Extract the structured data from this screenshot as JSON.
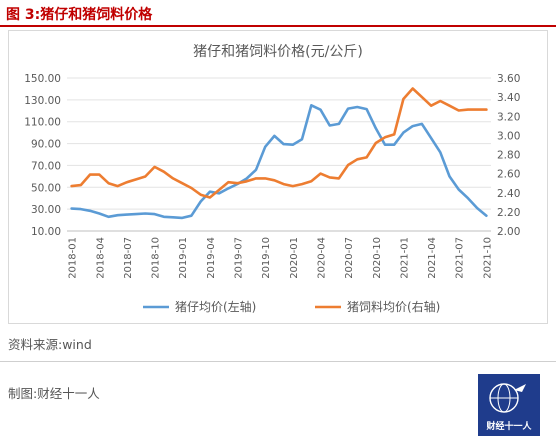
{
  "figure": {
    "title": "图 3:猪仔和猪饲料价格",
    "source": "资料来源:wind",
    "credit": "制图:财经十一人",
    "logo_text": "财经十一人"
  },
  "chart_data": {
    "type": "line",
    "title": "猪仔和猪饲料价格(元/公斤)",
    "x_tick_labels": [
      "2018-01",
      "2018-04",
      "2018-07",
      "2018-10",
      "2019-01",
      "2019-04",
      "2019-07",
      "2019-10",
      "2020-01",
      "2020-04",
      "2020-07",
      "2020-10",
      "2021-01",
      "2021-04",
      "2021-07",
      "2021-10"
    ],
    "x_tick_every": 3,
    "x": [
      "2018-01",
      "2018-02",
      "2018-03",
      "2018-04",
      "2018-05",
      "2018-06",
      "2018-07",
      "2018-08",
      "2018-09",
      "2018-10",
      "2018-11",
      "2018-12",
      "2019-01",
      "2019-02",
      "2019-03",
      "2019-04",
      "2019-05",
      "2019-06",
      "2019-07",
      "2019-08",
      "2019-09",
      "2019-10",
      "2019-11",
      "2019-12",
      "2020-01",
      "2020-02",
      "2020-03",
      "2020-04",
      "2020-05",
      "2020-06",
      "2020-07",
      "2020-08",
      "2020-09",
      "2020-10",
      "2020-11",
      "2020-12",
      "2021-01",
      "2021-02",
      "2021-03",
      "2021-04",
      "2021-05",
      "2021-06",
      "2021-07",
      "2021-08",
      "2021-09",
      "2021-10"
    ],
    "left_axis": {
      "min": 10,
      "max": 150,
      "step": 20,
      "ticks": [
        "10.00",
        "30.00",
        "50.00",
        "70.00",
        "90.00",
        "110.00",
        "130.00",
        "150.00"
      ]
    },
    "right_axis": {
      "min": 2.0,
      "max": 3.6,
      "step": 0.2,
      "ticks": [
        "2.00",
        "2.20",
        "2.40",
        "2.60",
        "2.80",
        "3.00",
        "3.20",
        "3.40",
        "3.60"
      ]
    },
    "grid": true,
    "legend_position": "bottom",
    "series": [
      {
        "name": "猪仔均价(左轴)",
        "axis": "left",
        "color": "#5b9bd5",
        "values": [
          30.5,
          30,
          28.5,
          26,
          23,
          24.5,
          25,
          25.5,
          26,
          25.5,
          23,
          22.5,
          22,
          24,
          37,
          46,
          44.5,
          49,
          53,
          58,
          66,
          87,
          97,
          89.5,
          89,
          94,
          125,
          121,
          106.5,
          108,
          122,
          123.5,
          121.5,
          104,
          89,
          89,
          100,
          106,
          108,
          95,
          82,
          60,
          48,
          40,
          31,
          24
        ]
      },
      {
        "name": "猪饲料均价(右轴)",
        "axis": "right",
        "color": "#ed7d31",
        "values": [
          2.47,
          2.48,
          2.59,
          2.59,
          2.5,
          2.47,
          2.51,
          2.54,
          2.57,
          2.67,
          2.62,
          2.55,
          2.5,
          2.45,
          2.38,
          2.35,
          2.43,
          2.51,
          2.5,
          2.52,
          2.55,
          2.55,
          2.53,
          2.49,
          2.47,
          2.49,
          2.52,
          2.6,
          2.56,
          2.55,
          2.69,
          2.75,
          2.77,
          2.92,
          2.98,
          3.01,
          3.38,
          3.49,
          3.4,
          3.31,
          3.36,
          3.31,
          3.26,
          3.27,
          3.27,
          3.27
        ]
      }
    ]
  }
}
